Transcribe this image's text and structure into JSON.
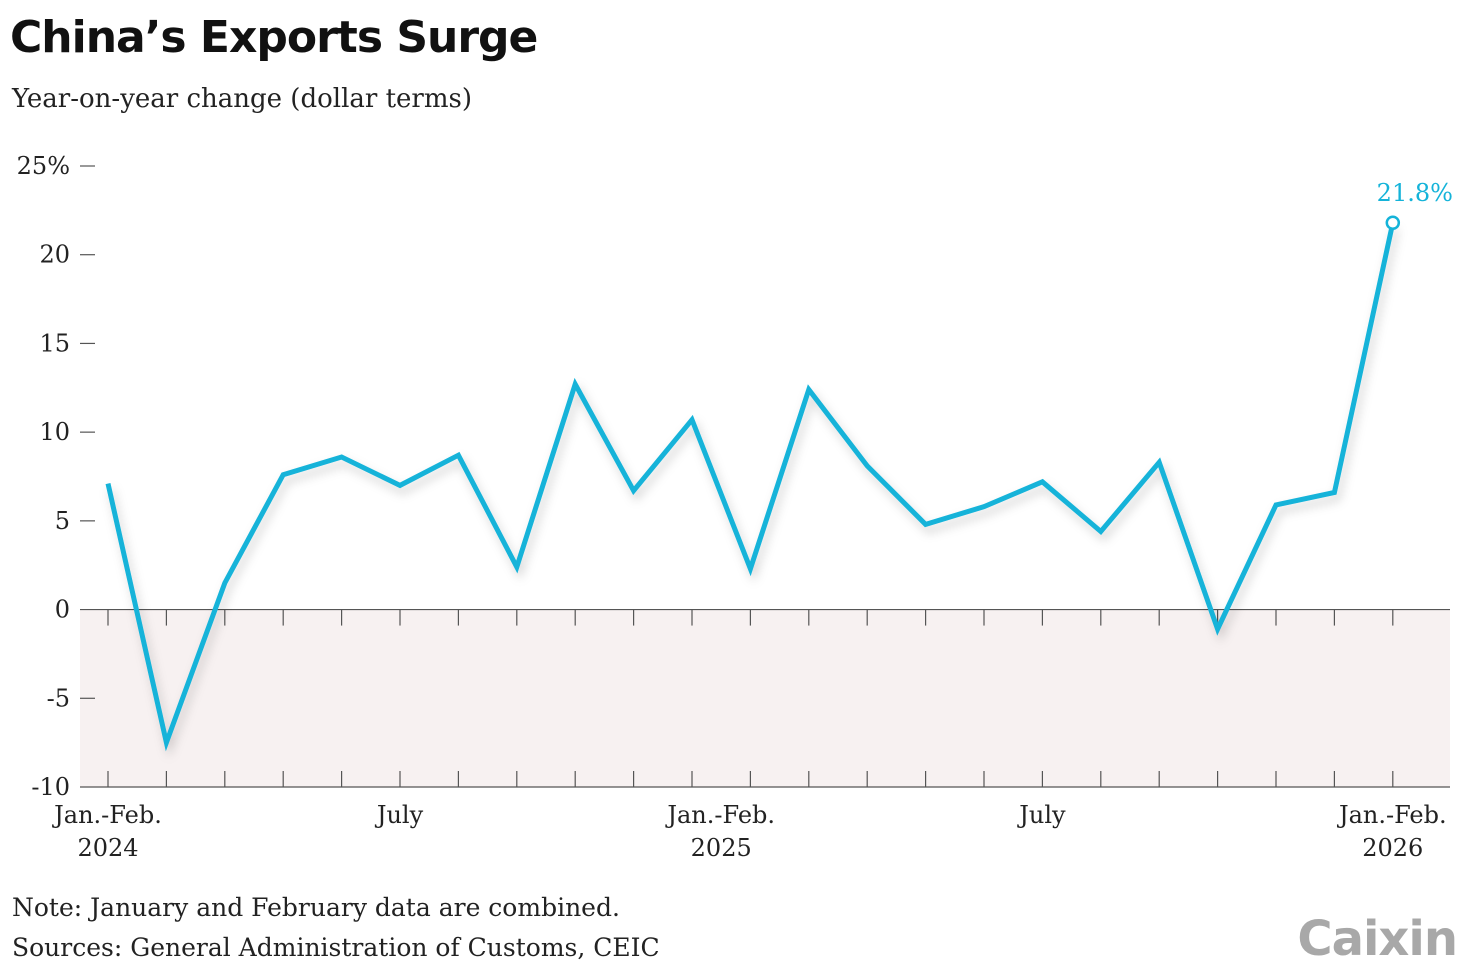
{
  "title": "China’s Exports Surge",
  "subtitle": "Year-on-year change (dollar terms)",
  "note": "Note: January and February data are combined.",
  "source": "Sources: General Administration of Customs, CEIC",
  "brand": "Caixin",
  "colors": {
    "line": "#14b3d9",
    "negative_band": "#f7f1f1",
    "axis": "#555555"
  },
  "chart_data": {
    "type": "line",
    "title": "China’s Exports Surge",
    "ylabel": "Year-on-year change (dollar terms)",
    "ylim": [
      -10,
      25
    ],
    "yticks": [
      {
        "value": 25,
        "label": "25%"
      },
      {
        "value": 20,
        "label": "20"
      },
      {
        "value": 15,
        "label": "15"
      },
      {
        "value": 10,
        "label": "10"
      },
      {
        "value": 5,
        "label": "5"
      },
      {
        "value": 0,
        "label": "0"
      },
      {
        "value": -5,
        "label": "-5"
      },
      {
        "value": -10,
        "label": "-10"
      }
    ],
    "x": [
      "2024-01/02",
      "2024-03",
      "2024-04",
      "2024-05",
      "2024-06",
      "2024-07",
      "2024-08",
      "2024-09",
      "2024-10",
      "2024-11",
      "2024-12",
      "2025-01/02",
      "2025-03",
      "2025-04",
      "2025-05",
      "2025-06",
      "2025-07",
      "2025-08",
      "2025-09",
      "2025-10",
      "2025-11",
      "2025-12",
      "2026-01/02"
    ],
    "values": [
      7.1,
      -7.5,
      1.5,
      7.6,
      8.6,
      7.0,
      8.7,
      2.4,
      12.7,
      6.7,
      10.7,
      2.3,
      12.4,
      8.1,
      4.8,
      5.8,
      7.2,
      4.4,
      8.3,
      -1.1,
      5.9,
      6.6,
      21.8
    ],
    "xtick_labels": [
      {
        "index": 0,
        "line1": "Jan.-Feb.",
        "line2": "2024"
      },
      {
        "index": 5,
        "line1": "July",
        "line2": ""
      },
      {
        "index": 10.5,
        "line1": "Jan.-Feb.",
        "line2": "2025"
      },
      {
        "index": 16,
        "line1": "July",
        "line2": ""
      },
      {
        "index": 22,
        "line1": "Jan.-Feb.",
        "line2": "2026"
      }
    ],
    "highlight": {
      "index": 22,
      "label": "21.8%"
    }
  }
}
